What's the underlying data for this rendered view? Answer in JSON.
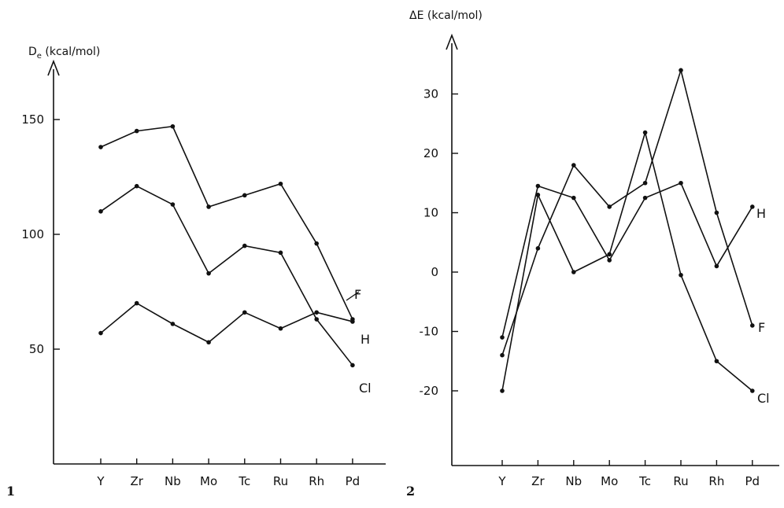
{
  "chart_data": [
    {
      "type": "line",
      "panel_label": "1",
      "ylabel_main": "D",
      "ylabel_sub": "e",
      "ylabel_unit": " (kcal/mol)",
      "categories": [
        "Y",
        "Zr",
        "Nb",
        "Mo",
        "Tc",
        "Ru",
        "Rh",
        "Pd"
      ],
      "yticks": [
        "50",
        "100",
        "150"
      ],
      "ylim": [
        0,
        185
      ],
      "grid": false,
      "series": [
        {
          "name": "F",
          "values": [
            138,
            145,
            147,
            112,
            117,
            122,
            96,
            63
          ]
        },
        {
          "name": "H",
          "values": [
            57,
            70,
            61,
            53,
            66,
            59,
            66,
            62
          ]
        },
        {
          "name": "Cl",
          "values": [
            110,
            121,
            113,
            83,
            95,
            92,
            63,
            43
          ]
        }
      ]
    },
    {
      "type": "line",
      "panel_label": "2",
      "ylabel_main": "ΔE (kcal/mol)",
      "categories": [
        "Y",
        "Zr",
        "Nb",
        "Mo",
        "Tc",
        "Ru",
        "Rh",
        "Pd"
      ],
      "yticks": [
        "-20",
        "-10",
        "0",
        "10",
        "20",
        "30"
      ],
      "ylim": [
        -33,
        40
      ],
      "grid": false,
      "series": [
        {
          "name": "F",
          "values": [
            -14,
            4,
            18,
            11,
            15,
            34,
            10,
            -9
          ]
        },
        {
          "name": "H",
          "values": [
            -11,
            14.5,
            12.5,
            2,
            12.5,
            15,
            1,
            11
          ]
        },
        {
          "name": "Cl",
          "values": [
            -20,
            13,
            0,
            3,
            23.5,
            -0.5,
            -15,
            -20
          ]
        }
      ]
    }
  ]
}
